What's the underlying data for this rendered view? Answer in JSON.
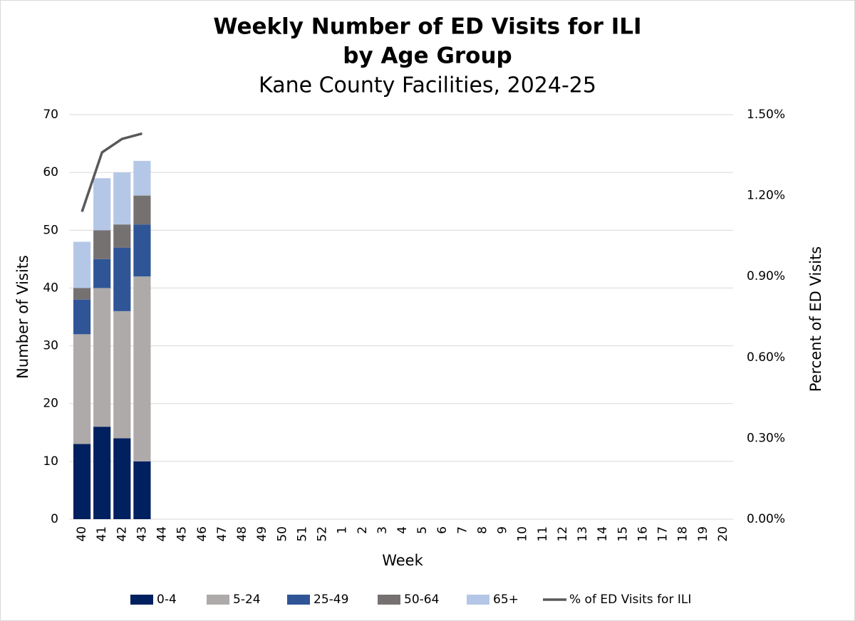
{
  "chart_data": {
    "type": "stacked_bar_line",
    "title": [
      "Weekly Number of ED Visits for ILI",
      "by Age Group"
    ],
    "subtitle": "Kane County Facilities, 2024-25",
    "x_label": "Week",
    "y_label": "Number of Visits",
    "y2_label": "Percent of ED Visits",
    "categories": [
      "40",
      "41",
      "42",
      "43",
      "44",
      "45",
      "46",
      "47",
      "48",
      "49",
      "50",
      "51",
      "52",
      "1",
      "2",
      "3",
      "4",
      "5",
      "6",
      "7",
      "8",
      "9",
      "10",
      "11",
      "12",
      "13",
      "14",
      "15",
      "16",
      "17",
      "18",
      "19",
      "20"
    ],
    "series": [
      {
        "name": "0-4",
        "color": "#002060",
        "type": "bar",
        "values": [
          13,
          16,
          14,
          10,
          null,
          null,
          null,
          null,
          null,
          null,
          null,
          null,
          null,
          null,
          null,
          null,
          null,
          null,
          null,
          null,
          null,
          null,
          null,
          null,
          null,
          null,
          null,
          null,
          null,
          null,
          null,
          null,
          null
        ]
      },
      {
        "name": "5-24",
        "color": "#aeaaaa",
        "type": "bar",
        "values": [
          19,
          24,
          22,
          32,
          null,
          null,
          null,
          null,
          null,
          null,
          null,
          null,
          null,
          null,
          null,
          null,
          null,
          null,
          null,
          null,
          null,
          null,
          null,
          null,
          null,
          null,
          null,
          null,
          null,
          null,
          null,
          null,
          null
        ]
      },
      {
        "name": "25-49",
        "color": "#2f5597",
        "type": "bar",
        "values": [
          6,
          5,
          11,
          9,
          null,
          null,
          null,
          null,
          null,
          null,
          null,
          null,
          null,
          null,
          null,
          null,
          null,
          null,
          null,
          null,
          null,
          null,
          null,
          null,
          null,
          null,
          null,
          null,
          null,
          null,
          null,
          null,
          null
        ]
      },
      {
        "name": "50-64",
        "color": "#767171",
        "type": "bar",
        "values": [
          2,
          5,
          4,
          5,
          null,
          null,
          null,
          null,
          null,
          null,
          null,
          null,
          null,
          null,
          null,
          null,
          null,
          null,
          null,
          null,
          null,
          null,
          null,
          null,
          null,
          null,
          null,
          null,
          null,
          null,
          null,
          null,
          null
        ]
      },
      {
        "name": "65+",
        "color": "#b4c7e7",
        "type": "bar",
        "values": [
          8,
          9,
          9,
          6,
          null,
          null,
          null,
          null,
          null,
          null,
          null,
          null,
          null,
          null,
          null,
          null,
          null,
          null,
          null,
          null,
          null,
          null,
          null,
          null,
          null,
          null,
          null,
          null,
          null,
          null,
          null,
          null,
          null
        ]
      },
      {
        "name": "% of ED Visits for ILI",
        "color": "#595959",
        "type": "line",
        "axis": "y2",
        "values": [
          1.14,
          1.36,
          1.41,
          1.43,
          null,
          null,
          null,
          null,
          null,
          null,
          null,
          null,
          null,
          null,
          null,
          null,
          null,
          null,
          null,
          null,
          null,
          null,
          null,
          null,
          null,
          null,
          null,
          null,
          null,
          null,
          null,
          null,
          null
        ]
      }
    ],
    "ylim": [
      0,
      70
    ],
    "yticks": [
      0,
      10,
      20,
      30,
      40,
      50,
      60,
      70
    ],
    "y2lim": [
      0,
      1.5
    ],
    "y2ticks": [
      {
        "value": 0,
        "label": "0.00%"
      },
      {
        "value": 0.3,
        "label": "0.30%"
      },
      {
        "value": 0.6,
        "label": "0.60%"
      },
      {
        "value": 0.9,
        "label": "0.90%"
      },
      {
        "value": 1.2,
        "label": "1.20%"
      },
      {
        "value": 1.5,
        "label": "1.50%"
      }
    ],
    "grid": true,
    "legend": "bottom"
  }
}
